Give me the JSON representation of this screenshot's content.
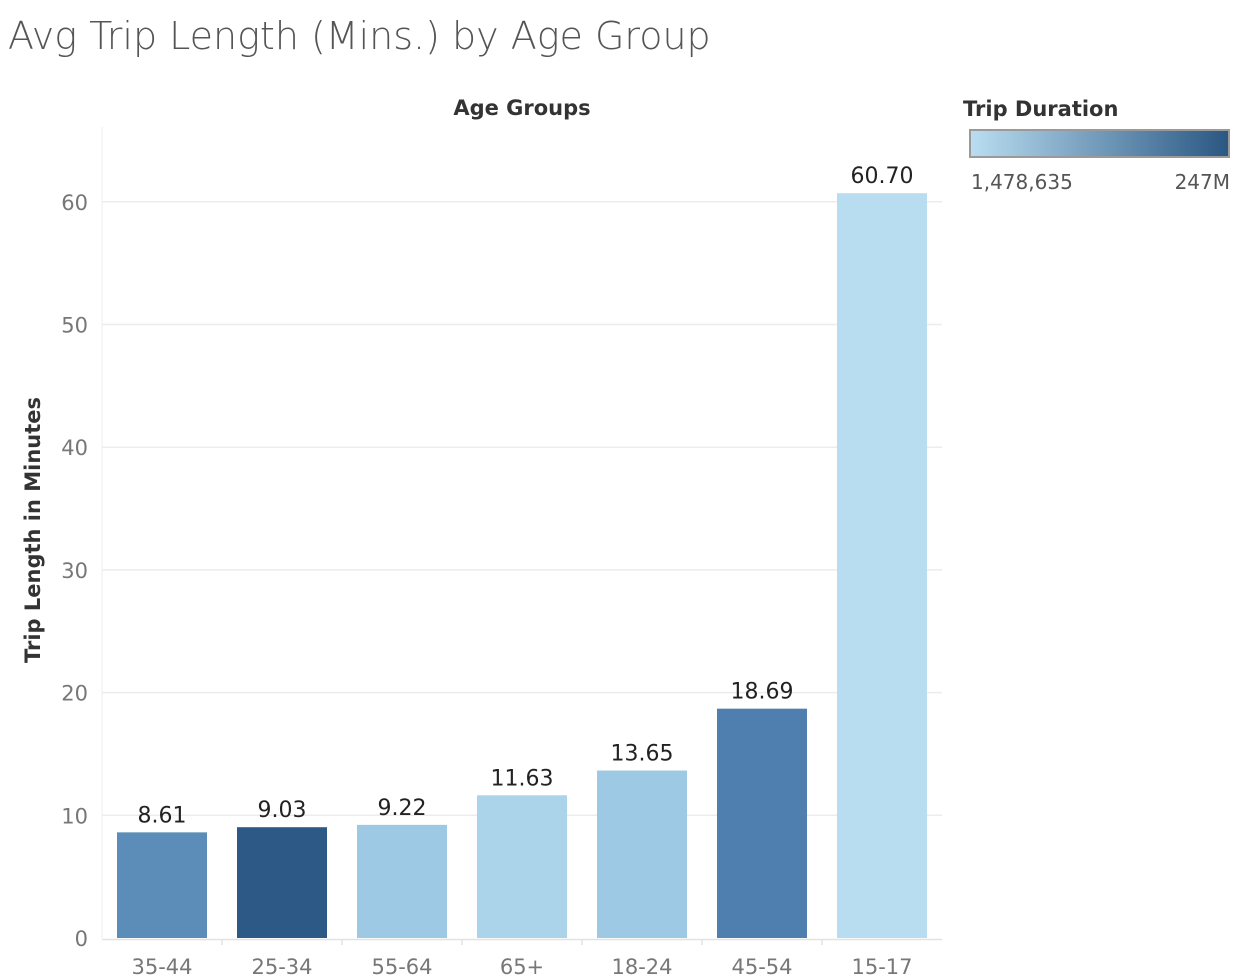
{
  "title": "Avg Trip Length (Mins.) by Age Group",
  "legend": {
    "title": "Trip Duration",
    "min_label": "1,478,635",
    "max_label": "247M",
    "color_low": "#b9ddf0",
    "color_high": "#2a5783"
  },
  "chart_data": {
    "type": "bar",
    "title": "Avg Trip Length (Mins.) by Age Group",
    "xlabel": "Age Groups",
    "ylabel": "Trip Length in Minutes",
    "categories": [
      "35-44",
      "25-34",
      "55-64",
      "65+",
      "18-24",
      "45-54",
      "15-17"
    ],
    "values": [
      8.61,
      9.03,
      9.22,
      11.63,
      13.65,
      18.69,
      60.7
    ],
    "value_labels": [
      "8.61",
      "9.03",
      "9.22",
      "11.63",
      "13.65",
      "18.69",
      "60.70"
    ],
    "bar_colors": [
      "#5b8db8",
      "#2c5985",
      "#9ec9e5",
      "#abd3ea",
      "#9ec9e5",
      "#4e7fae",
      "#b9ddf0"
    ],
    "ylim": [
      0,
      66
    ],
    "yticks": [
      0,
      10,
      20,
      30,
      40,
      50,
      60
    ],
    "grid": true,
    "legend_position": "top-right"
  }
}
